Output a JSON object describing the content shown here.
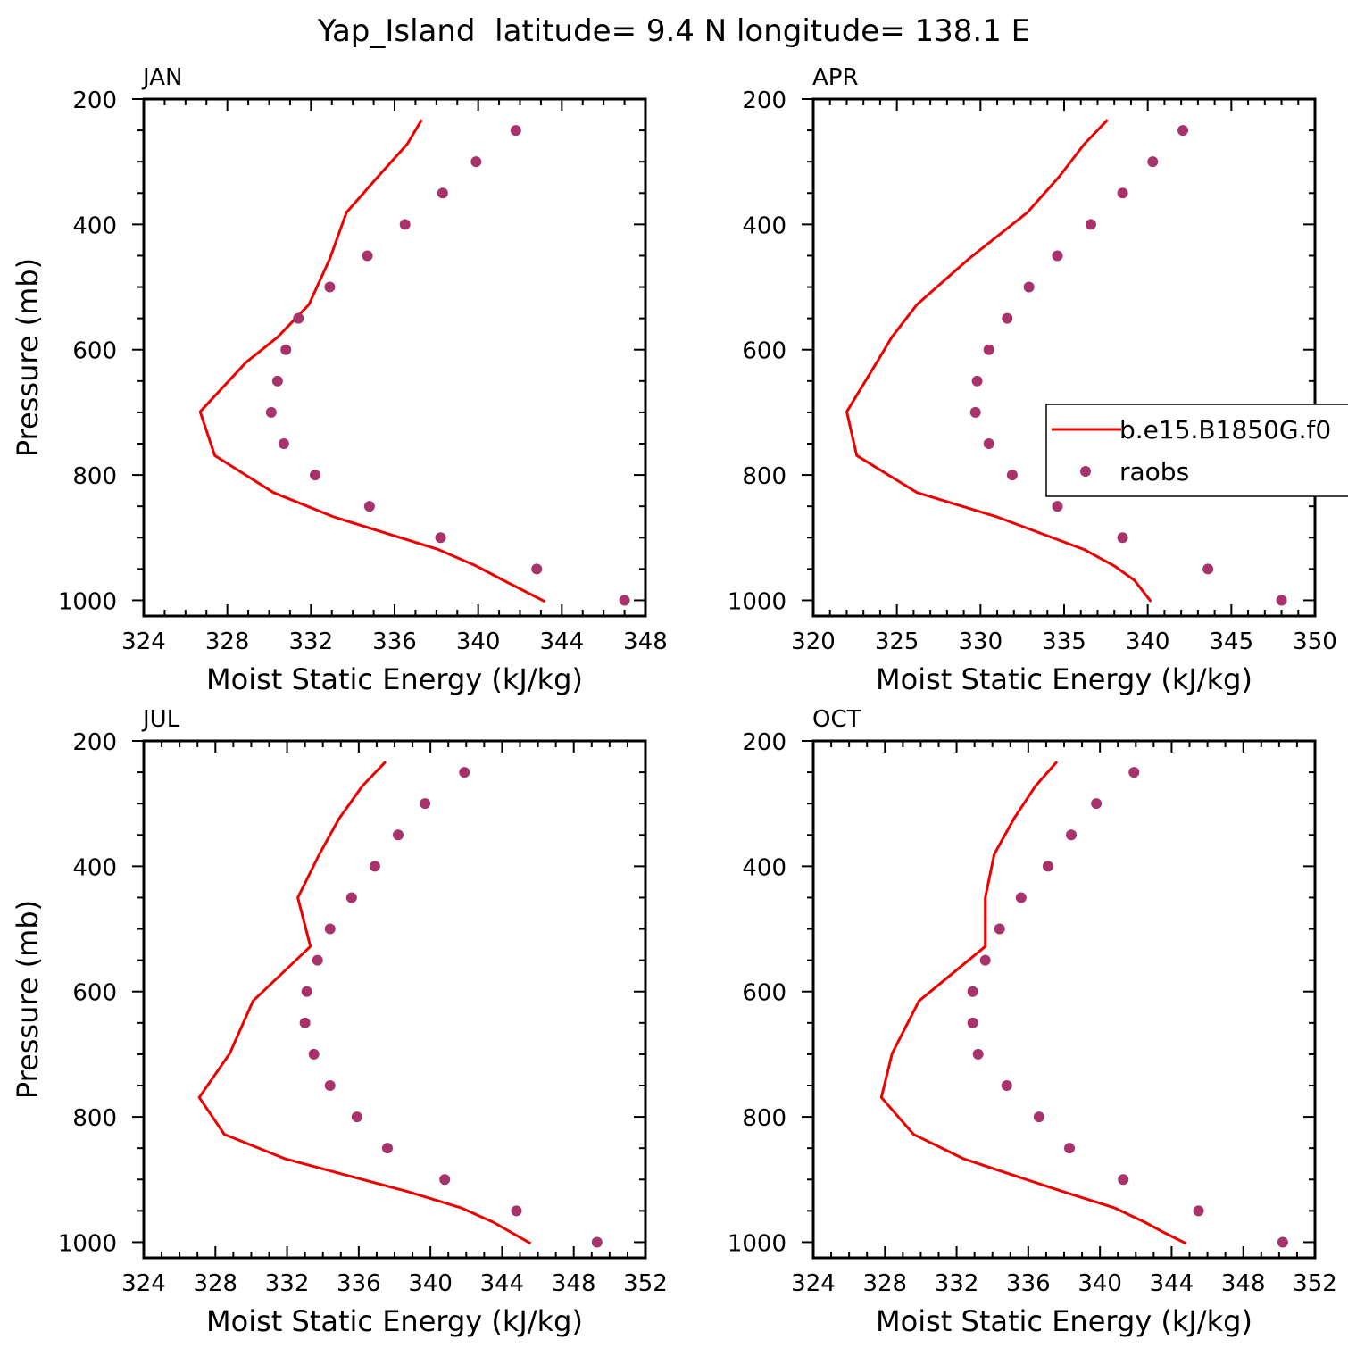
{
  "title": "Yap_Island  latitude= 9.4 N longitude= 138.1 E",
  "colors": {
    "model": "#ee0000",
    "obs": "#a8336a",
    "axis": "#000000"
  },
  "legend": {
    "model_label": "b.e15.B1850G.f0",
    "obs_label": "raobs",
    "placement": "right"
  },
  "chart_data": [
    {
      "type": "line",
      "panel_label": "JAN",
      "xlabel": "Moist Static Energy (kJ/kg)",
      "ylabel": "Pressure (mb)",
      "xlim": [
        324,
        348
      ],
      "xticks": [
        324,
        328,
        332,
        336,
        340,
        344,
        348
      ],
      "xminor": 1,
      "ylim": [
        1025,
        200
      ],
      "yticks": [
        200,
        400,
        600,
        800,
        1000
      ],
      "yminor": 50,
      "model": {
        "p": [
          233,
          272,
          324,
          381,
          455,
          528,
          580,
          620,
          699,
          769,
          828,
          867,
          919,
          945,
          968,
          1002
        ],
        "mse": [
          337.3,
          336.6,
          335.2,
          333.7,
          332.9,
          331.9,
          330.4,
          328.9,
          326.7,
          327.4,
          330.2,
          333.1,
          338.1,
          339.9,
          341.2,
          343.2
        ]
      },
      "obs": {
        "p": [
          250,
          300,
          350,
          400,
          450,
          500,
          550,
          600,
          650,
          700,
          750,
          800,
          850,
          900,
          950,
          1000
        ],
        "mse": [
          341.8,
          339.9,
          338.3,
          336.5,
          334.7,
          332.9,
          331.4,
          330.8,
          330.4,
          330.1,
          330.7,
          332.2,
          334.8,
          338.2,
          342.8,
          347.0
        ]
      }
    },
    {
      "type": "line",
      "panel_label": "APR",
      "xlabel": "Moist Static Energy (kJ/kg)",
      "ylabel": "",
      "xlim": [
        320,
        350
      ],
      "xticks": [
        320,
        325,
        330,
        335,
        340,
        345,
        350
      ],
      "xminor": 1,
      "ylim": [
        1025,
        200
      ],
      "yticks": [
        200,
        400,
        600,
        800,
        1000
      ],
      "yminor": 50,
      "model": {
        "p": [
          233,
          272,
          324,
          381,
          455,
          528,
          580,
          620,
          699,
          769,
          828,
          867,
          919,
          945,
          968,
          1002
        ],
        "mse": [
          337.6,
          336.2,
          334.7,
          332.8,
          329.3,
          326.2,
          324.7,
          323.8,
          322.0,
          322.6,
          326.2,
          331.0,
          336.2,
          338.0,
          339.2,
          340.2
        ]
      },
      "obs": {
        "p": [
          250,
          300,
          350,
          400,
          450,
          500,
          550,
          600,
          650,
          700,
          750,
          800,
          850,
          900,
          950,
          1000
        ],
        "mse": [
          342.1,
          340.3,
          338.5,
          336.6,
          334.6,
          332.9,
          331.6,
          330.5,
          329.8,
          329.7,
          330.5,
          331.9,
          334.6,
          338.5,
          343.6,
          348.0
        ]
      }
    },
    {
      "type": "line",
      "panel_label": "JUL",
      "xlabel": "Moist Static Energy (kJ/kg)",
      "ylabel": "Pressure (mb)",
      "xlim": [
        324,
        352
      ],
      "xticks": [
        324,
        328,
        332,
        336,
        340,
        344,
        348,
        352
      ],
      "xminor": 1,
      "ylim": [
        1025,
        200
      ],
      "yticks": [
        200,
        400,
        600,
        800,
        1000
      ],
      "yminor": 50,
      "model": {
        "p": [
          233,
          272,
          324,
          381,
          450,
          528,
          615,
          699,
          769,
          828,
          867,
          919,
          945,
          968,
          1002
        ],
        "mse": [
          337.5,
          336.2,
          334.9,
          333.8,
          332.6,
          333.3,
          330.1,
          328.8,
          327.1,
          328.5,
          331.9,
          338.7,
          341.7,
          343.5,
          345.6
        ]
      },
      "obs": {
        "p": [
          250,
          300,
          350,
          400,
          450,
          500,
          550,
          600,
          650,
          700,
          750,
          800,
          850,
          900,
          950,
          1000
        ],
        "mse": [
          341.9,
          339.7,
          338.2,
          336.9,
          335.6,
          334.4,
          333.7,
          333.1,
          333.0,
          333.5,
          334.4,
          335.9,
          337.6,
          340.8,
          344.8,
          349.3
        ]
      }
    },
    {
      "type": "line",
      "panel_label": "OCT",
      "xlabel": "Moist Static Energy (kJ/kg)",
      "ylabel": "",
      "xlim": [
        324,
        352
      ],
      "xticks": [
        324,
        328,
        332,
        336,
        340,
        344,
        348,
        352
      ],
      "xminor": 1,
      "ylim": [
        1025,
        200
      ],
      "yticks": [
        200,
        400,
        600,
        800,
        1000
      ],
      "yminor": 50,
      "model": {
        "p": [
          233,
          272,
          324,
          381,
          450,
          528,
          615,
          699,
          769,
          828,
          867,
          919,
          945,
          968,
          985,
          1002
        ],
        "mse": [
          337.6,
          336.4,
          335.2,
          334.1,
          333.6,
          333.6,
          329.9,
          328.4,
          327.8,
          329.6,
          332.4,
          337.9,
          340.8,
          342.5,
          343.6,
          344.8
        ]
      },
      "obs": {
        "p": [
          250,
          300,
          350,
          400,
          450,
          500,
          550,
          600,
          650,
          700,
          750,
          800,
          850,
          900,
          950,
          1000
        ],
        "mse": [
          341.9,
          339.8,
          338.4,
          337.1,
          335.6,
          334.4,
          333.6,
          332.9,
          332.9,
          333.2,
          334.8,
          336.6,
          338.3,
          341.3,
          345.5,
          350.2
        ]
      }
    }
  ]
}
